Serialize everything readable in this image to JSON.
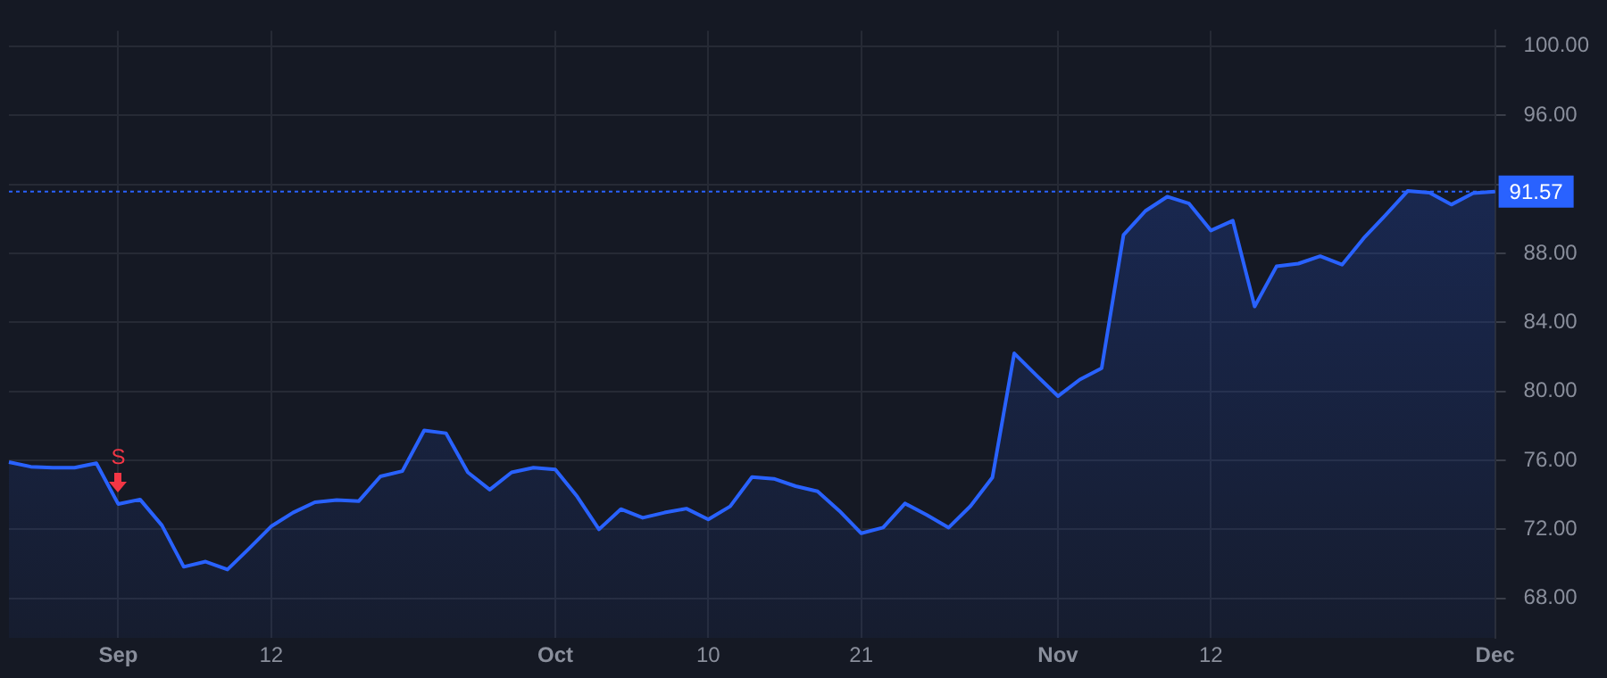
{
  "chart_data": {
    "type": "area",
    "categories": [
      null,
      null,
      null,
      null,
      null,
      "Sep",
      null,
      null,
      null,
      null,
      null,
      null,
      "12",
      null,
      null,
      null,
      null,
      null,
      null,
      null,
      null,
      null,
      null,
      null,
      null,
      "Oct",
      null,
      null,
      null,
      null,
      null,
      null,
      "10",
      null,
      null,
      null,
      null,
      null,
      null,
      "21",
      null,
      null,
      null,
      null,
      null,
      null,
      null,
      null,
      "Nov",
      null,
      null,
      null,
      null,
      null,
      null,
      "12",
      null,
      null,
      null,
      null,
      null,
      null,
      null,
      null,
      null,
      null,
      null,
      null,
      "Dec"
    ],
    "series": [
      {
        "color": "#2962ff",
        "values": [
          75.9,
          75.63,
          75.57,
          75.57,
          75.83,
          73.47,
          73.73,
          72.23,
          69.83,
          70.13,
          69.67,
          70.9,
          72.17,
          72.97,
          73.57,
          73.7,
          73.63,
          75.07,
          75.37,
          77.73,
          77.57,
          75.3,
          74.3,
          75.3,
          75.57,
          75.47,
          73.9,
          72.0,
          73.17,
          72.67,
          72.97,
          73.2,
          72.57,
          73.33,
          75.03,
          74.93,
          74.5,
          74.2,
          73.07,
          71.77,
          72.1,
          73.5,
          72.83,
          72.1,
          73.35,
          75.0,
          82.2,
          80.94,
          79.72,
          80.68,
          81.34,
          89.06,
          90.45,
          91.28,
          90.88,
          89.32,
          89.89,
          84.92,
          87.24,
          87.4,
          87.83,
          87.34,
          88.89,
          90.22,
          91.61,
          91.51,
          90.82,
          91.48,
          91.57
        ]
      }
    ],
    "ylim": [
      65.7,
      100.9
    ],
    "yticks": [
      {
        "value": 68,
        "label": "68.00"
      },
      {
        "value": 72,
        "label": "72.00"
      },
      {
        "value": 76,
        "label": "76.00"
      },
      {
        "value": 80,
        "label": "80.00"
      },
      {
        "value": 84,
        "label": "84.00"
      },
      {
        "value": 88,
        "label": "88.00"
      },
      {
        "value": 92,
        "label": null
      },
      {
        "value": 96,
        "label": "96.00"
      },
      {
        "value": 100,
        "label": "100.00"
      }
    ],
    "ref_lines": [
      {
        "axis": "y",
        "value": 91.57,
        "label": "91.57",
        "color": "#2962ff",
        "line_style": "dotted"
      }
    ],
    "annotations": [
      {
        "text": "S",
        "x": "Sep",
        "y": 73.47
      }
    ],
    "grid": true,
    "legend": false,
    "marker": "none",
    "line_style": "solid"
  }
}
